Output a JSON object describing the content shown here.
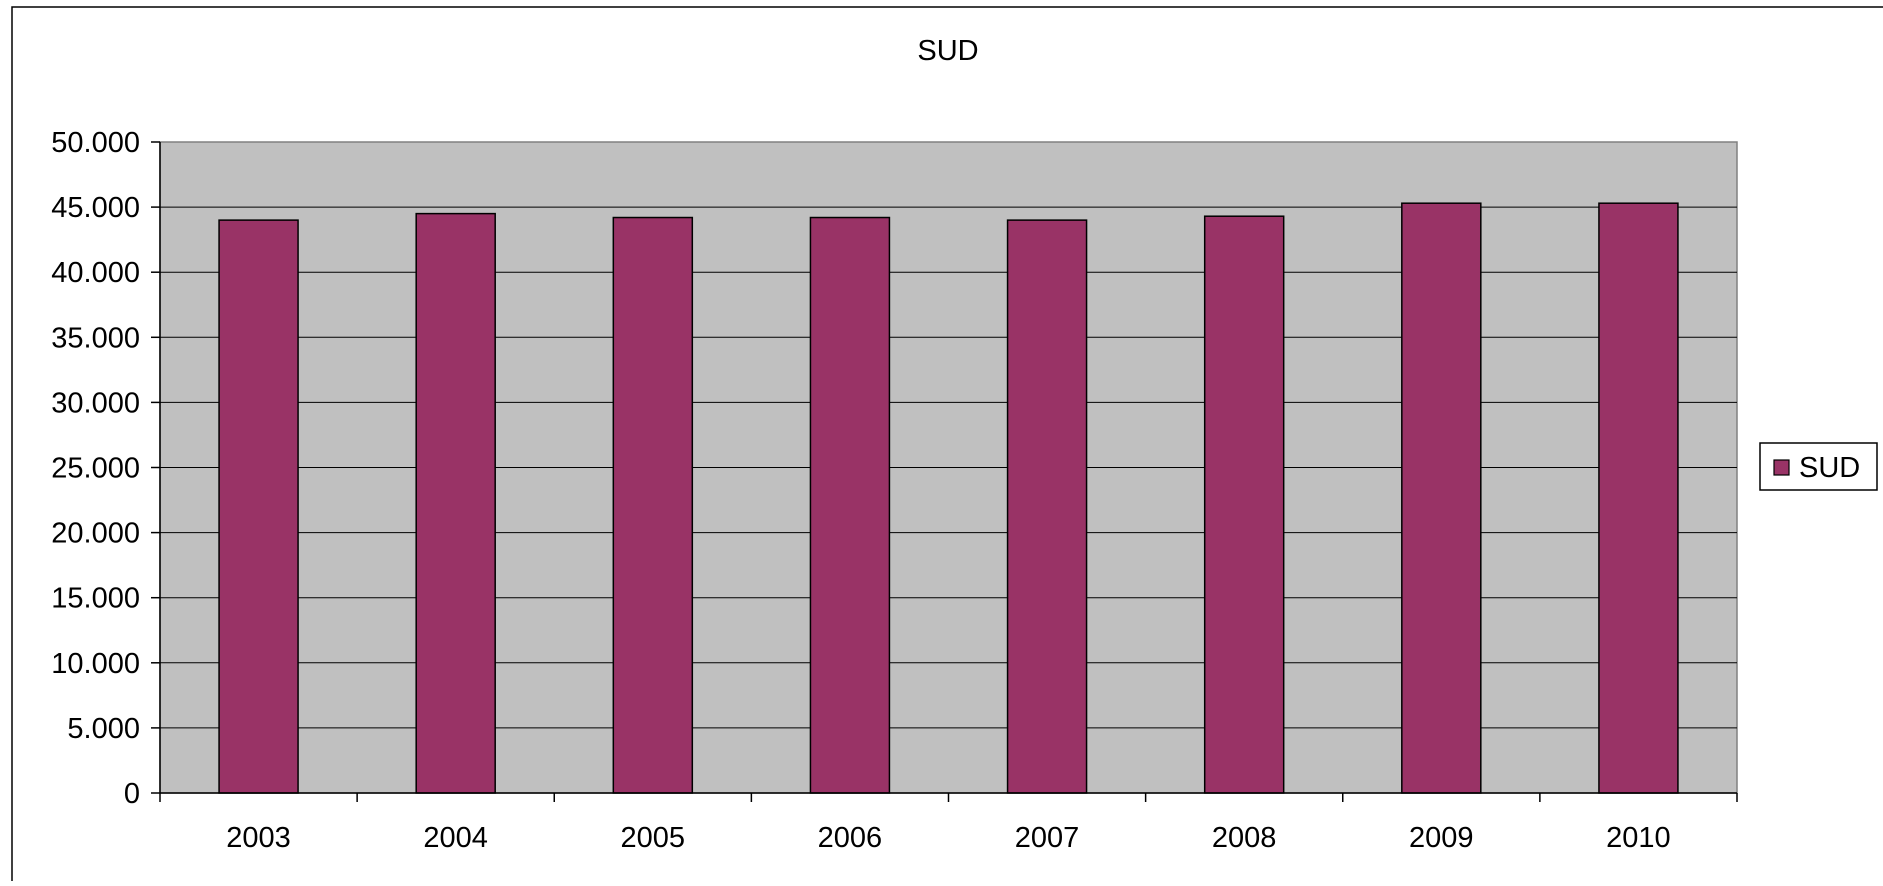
{
  "chart_data": {
    "type": "bar",
    "title": "SUD",
    "xlabel": "",
    "ylabel": "",
    "categories": [
      "2003",
      "2004",
      "2005",
      "2006",
      "2007",
      "2008",
      "2009",
      "2010"
    ],
    "series": [
      {
        "name": "SUD",
        "values": [
          44000,
          44500,
          44200,
          44200,
          44000,
          44300,
          45300,
          45300
        ],
        "color": "#993366"
      }
    ],
    "ylim": [
      0,
      50000
    ],
    "ytick_labels": [
      "0",
      "5.000",
      "10.000",
      "15.000",
      "20.000",
      "25.000",
      "30.000",
      "35.000",
      "40.000",
      "45.000",
      "50.000"
    ],
    "grid": true,
    "legend_position": "right",
    "plot_background": "#c0c0c0",
    "page_background": "#ffffff",
    "gridline_color": "#000000"
  }
}
